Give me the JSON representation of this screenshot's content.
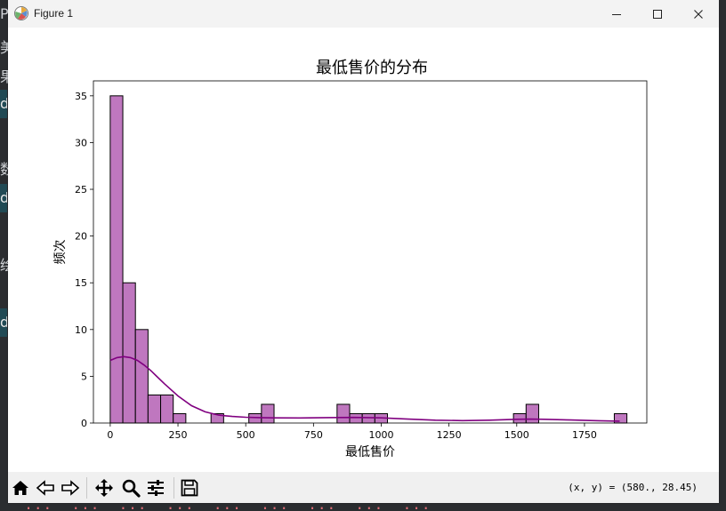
{
  "window": {
    "title": "Figure 1"
  },
  "toolbar": {
    "buttons": [
      "home-icon",
      "back-arrow-icon",
      "forward-arrow-icon",
      "pan-icon",
      "zoom-icon",
      "configure-subplots-icon",
      "save-icon"
    ],
    "coordinates": "(x, y) = (580., 28.45)"
  },
  "chart_data": {
    "type": "histogram",
    "title": "最低售价的分布",
    "xlabel": "最低售价",
    "ylabel": "频次",
    "xlim": [
      -62,
      1980
    ],
    "ylim": [
      0,
      36.6
    ],
    "xticks": [
      0,
      250,
      500,
      750,
      1000,
      1250,
      1500,
      1750
    ],
    "yticks": [
      0,
      5,
      10,
      15,
      20,
      25,
      30,
      35
    ],
    "bin_width": 46.5,
    "bins": [
      {
        "x0": 0,
        "count": 35
      },
      {
        "x0": 46.5,
        "count": 15
      },
      {
        "x0": 93,
        "count": 10
      },
      {
        "x0": 139.5,
        "count": 3
      },
      {
        "x0": 186,
        "count": 3
      },
      {
        "x0": 232.5,
        "count": 1
      },
      {
        "x0": 372,
        "count": 1
      },
      {
        "x0": 511.5,
        "count": 1
      },
      {
        "x0": 558,
        "count": 2
      },
      {
        "x0": 837,
        "count": 2
      },
      {
        "x0": 883.5,
        "count": 1
      },
      {
        "x0": 930,
        "count": 1
      },
      {
        "x0": 976.5,
        "count": 1
      },
      {
        "x0": 1488,
        "count": 1
      },
      {
        "x0": 1534.5,
        "count": 2
      },
      {
        "x0": 1860,
        "count": 1
      }
    ],
    "kde": {
      "x": [
        0,
        25,
        50,
        75,
        100,
        125,
        150,
        175,
        200,
        250,
        300,
        350,
        400,
        450,
        500,
        550,
        600,
        700,
        800,
        900,
        1000,
        1100,
        1200,
        1300,
        1400,
        1500,
        1550,
        1600,
        1700,
        1800,
        1880
      ],
      "y": [
        6.7,
        7.0,
        7.1,
        7.0,
        6.7,
        6.2,
        5.6,
        4.9,
        4.2,
        2.9,
        1.85,
        1.2,
        0.85,
        0.7,
        0.62,
        0.58,
        0.55,
        0.54,
        0.58,
        0.6,
        0.55,
        0.42,
        0.3,
        0.26,
        0.3,
        0.4,
        0.42,
        0.4,
        0.32,
        0.25,
        0.2
      ]
    },
    "bar_fill": "#bf77bf",
    "bar_edge": "#000000",
    "line_color": "#800080",
    "grid": false
  }
}
